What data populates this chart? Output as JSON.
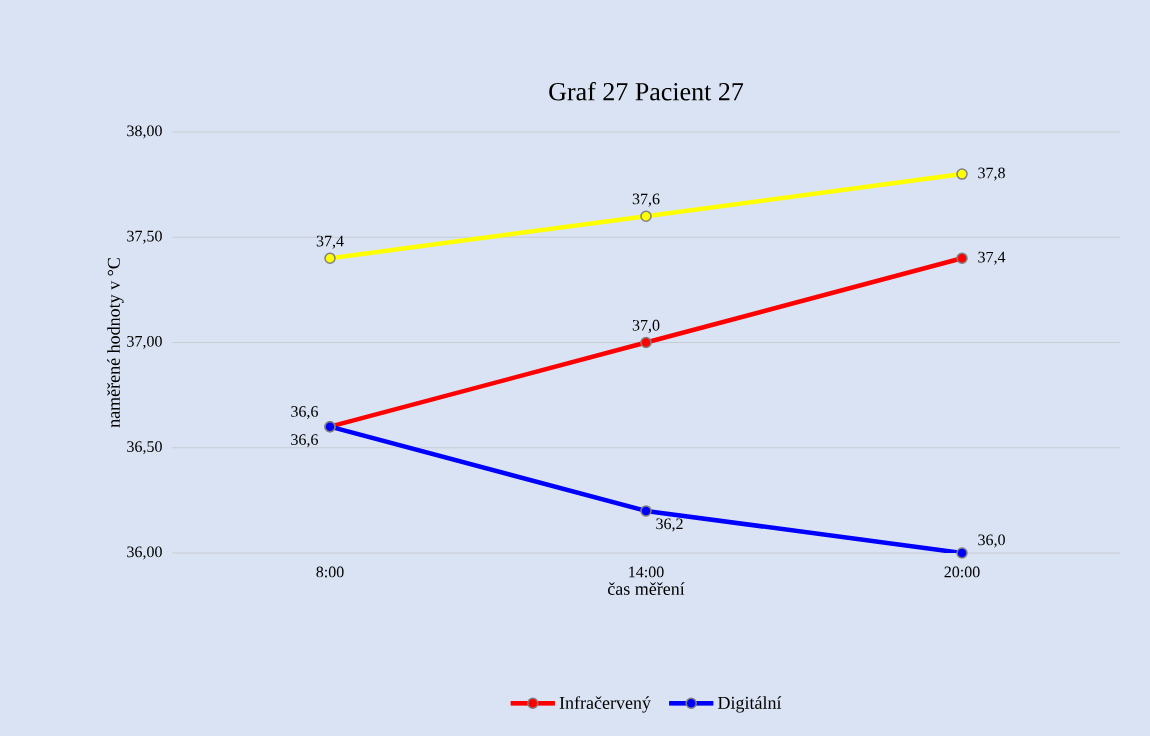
{
  "chart_data": {
    "type": "line",
    "title": "Graf 27 Pacient 27",
    "xlabel": "čas měření",
    "ylabel": "naměřené hodnoty v °C",
    "categories": [
      "8:00",
      "14:00",
      "20:00"
    ],
    "series": [
      {
        "name": "Infračervený",
        "color": "#ff0000",
        "values": [
          36.6,
          37.0,
          37.4
        ],
        "value_labels": [
          "36,6",
          "37,0",
          "37,4"
        ]
      },
      {
        "name": "Digitální",
        "color": "#0000ff",
        "values": [
          36.6,
          36.2,
          36.0
        ],
        "value_labels": [
          "36,6",
          "36,2",
          "36,0"
        ]
      },
      {
        "color": "#ffff00",
        "values": [
          37.4,
          37.6,
          37.8
        ],
        "value_labels": [
          "37,4",
          "37,6",
          "37,8"
        ]
      }
    ],
    "ylim": [
      36,
      38
    ],
    "yticks": [
      {
        "value": 36,
        "label": "36,00"
      },
      {
        "value": 36.5,
        "label": "36,50"
      },
      {
        "value": 37,
        "label": "37,00"
      },
      {
        "value": 37.5,
        "label": "37,50"
      },
      {
        "value": 38,
        "label": "38,00"
      }
    ],
    "grid": "y",
    "legend": "bottom",
    "marker": "circle",
    "line_style": "solid"
  }
}
